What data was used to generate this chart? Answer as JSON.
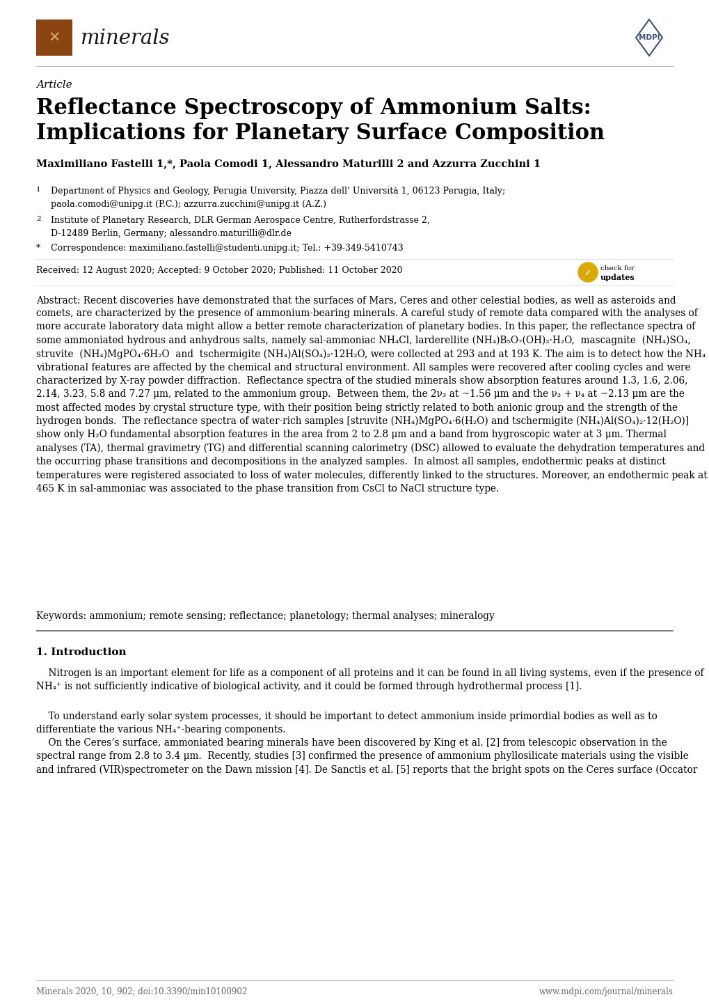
{
  "page_width": 10.2,
  "page_height": 14.42,
  "bg_color": "#ffffff",
  "journal_name": "minerals",
  "article_label": "Article",
  "title_line1": "Reflectance Spectroscopy of Ammonium Salts:",
  "title_line2": "Implications for Planetary Surface Composition",
  "authors": "Maximiliano Fastelli 1,*, Paola Comodi 1, Alessandro Maturilli 2 and Azzurra Zucchini 1",
  "affil1_num": "1",
  "affil1_text": "Department of Physics and Geology, Perugia University, Piazza dell’ Università 1, 06123 Perugia, Italy;\npaola.comodi@unipg.it (P.C.); azzurra.zucchini@unipg.it (A.Z.)",
  "affil2_num": "2",
  "affil2_text": "Institute of Planetary Research, DLR German Aerospace Centre, Rutherfordstrasse 2,\nD-12489 Berlin, Germany; alessandro.maturilli@dlr.de",
  "affil3_sym": "*",
  "affil3_text": "Correspondence: maximiliano.fastelli@studenti.unipg.it; Tel.: +39-349-5410743",
  "received": "Received: 12 August 2020; Accepted: 9 October 2020; Published: 11 October 2020",
  "abstract_bold": "Abstract:",
  "abstract_body": " Recent discoveries have demonstrated that the surfaces of Mars, Ceres and other celestial bodies, as well as asteroids and comets, are characterized by the presence of ammonium-bearing minerals. A careful study of remote data compared with the analyses of more accurate laboratory data might allow a better remote characterization of planetary bodies. In this paper, the reflectance spectra of some ammoniated hydrous and anhydrous salts, namely sal-ammoniac NH₄Cl, larderellite (NH₄)B₅O₇(OH)₂·H₂O,  mascagnite  (NH₄)SO₄,  struvite  (NH₄)MgPO₄·6H₂O  and  tschermigite (NH₄)Al(SO₄)₂·12H₂O, were collected at 293 and at 193 K. The aim is to detect how the NH₄ vibrational features are affected by the chemical and structural environment. All samples were recovered after cooling cycles and were characterized by X-ray powder diffraction.  Reflectance spectra of the studied minerals show absorption features around 1.3, 1.6, 2.06, 2.14, 3.23, 5.8 and 7.27 μm, related to the ammonium group.  Between them, the 2ν₃ at ~1.56 μm and the ν₃ + ν₄ at ~2.13 μm are the most affected modes by crystal structure type, with their position being strictly related to both anionic group and the strength of the hydrogen bonds.  The reflectance spectra of water-rich samples [struvite (NH₄)MgPO₄·6(H₂O) and tschermigite (NH₄)Al(SO₄)₂·12(H₂O)] show only H₂O fundamental absorption features in the area from 2 to 2.8 μm and a band from hygroscopic water at 3 μm. Thermal analyses (TA), thermal gravimetry (TG) and differential scanning calorimetry (DSC) allowed to evaluate the dehydration temperatures and the occurring phase transitions and decompositions in the analyzed samples.  In almost all samples, endothermic peaks at distinct temperatures were registered associated to loss of water molecules, differently linked to the structures. Moreover, an endothermic peak at 465 K in sal-ammoniac was associated to the phase transition from CsCl to NaCl structure type.",
  "keywords_bold": "Keywords:",
  "keywords_body": " ammonium; remote sensing; reflectance; planetology; thermal analyses; mineralogy",
  "section1": "1. Introduction",
  "intro_p1": "    Nitrogen is an important element for life as a component of all proteins and it can be found in all living systems, even if the presence of NH₄⁺ is not sufficiently indicative of biological activity, and it could be formed through hydrothermal process [1].",
  "intro_p2": "    To understand early solar system processes, it should be important to detect ammonium inside primordial bodies as well as to differentiate the various NH₄⁺-bearing components.",
  "intro_p3": "    On the Ceres’s surface, ammoniated bearing minerals have been discovered by King et al. [2] from telescopic observation in the spectral range from 2.8 to 3.4 μm.  Recently, studies [3] confirmed the presence of ammonium phyllosilicate materials using the visible and infrared (VIR)spectrometer on the Dawn mission [4]. De Sanctis et al. [5] reports that the bright spots on the Ceres surface (Occator",
  "footer_left": "Minerals 2020, 10, 902; doi:10.3390/min10100902",
  "footer_right": "www.mdpi.com/journal/minerals",
  "brown": "#8B4513",
  "mdpi_blue": "#3a5270",
  "text_color": "#000000",
  "footer_color": "#666666"
}
